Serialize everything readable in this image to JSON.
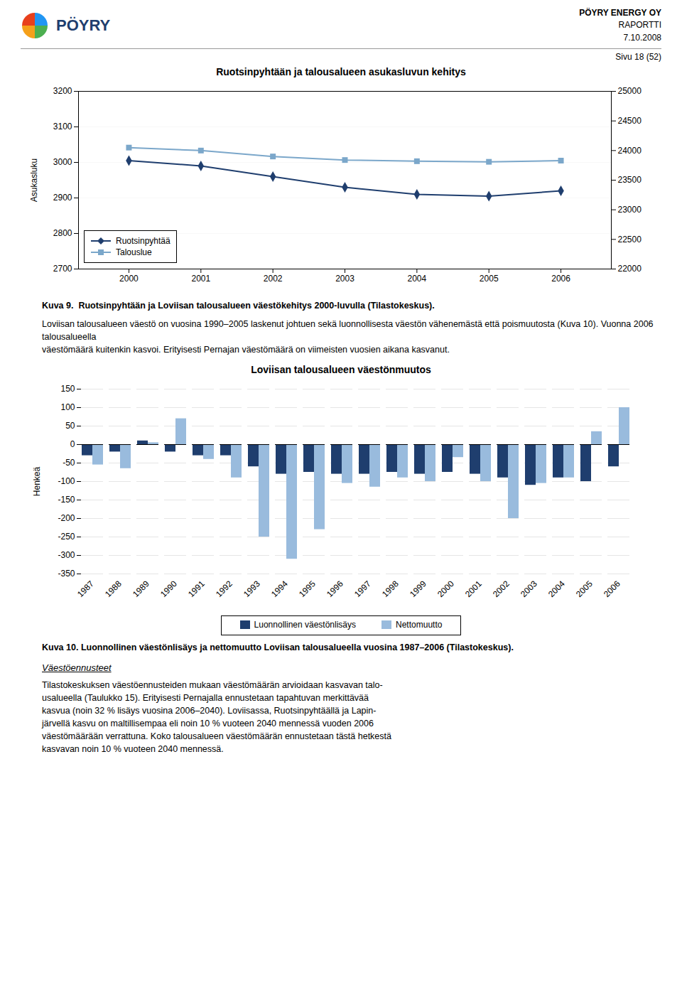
{
  "page": {
    "logo": "PÖYRY",
    "header": [
      "PÖYRY ENERGY OY",
      "RAPORTTI",
      "7.10.2008"
    ],
    "page_number": "Sivu 18 (52)",
    "caption1": "Kuva 9.  Ruotsinpyhtään ja Loviisan talousalueen väestökehitys 2000-luvulla (Tilastokeskus).",
    "body1": [
      "Loviisan talousalueen väestö on vuosina 1990–2005 laskenut johtuen sekä luonnollisesta väestön vähenemästä että poismuutosta (Kuva 10). Vuonna 2006 talousalueella",
      "väestömäärä kuitenkin kasvoi. Erityisesti Pernajan väestömäärä on viimeisten vuosien aikana kasvanut."
    ],
    "caption2": "Kuva 10. Luonnollinen väestönlisäys ja nettomuutto Loviisan talousalueella vuosina 1987–2006 (Tilastokeskus).",
    "section_title": "Väestöennusteet",
    "body2": [
      "Tilastokeskuksen väestöennusteiden mukaan väestömäärän arvioidaan kasvavan talo-",
      "usalueella (Taulukko 15). Erityisesti Pernajalla ennustetaan tapahtuvan merkittävää",
      "kasvua (noin 32 % lisäys vuosina 2006–2040). Loviisassa, Ruotsinpyhtäällä ja Lapin-",
      "järvellä kasvu on maltillisempaa eli noin 10 % vuoteen 2040 mennessä vuoden 2006",
      "väestömäärään verrattuna. Koko talousalueen väestömäärän ennustetaan tästä hetkestä",
      "kasvavan noin 10 % vuoteen 2040 mennessä."
    ]
  },
  "chart_data": [
    {
      "type": "line",
      "title": "Ruotsinpyhtään ja talousalueen asukasluvun kehitys",
      "x": [
        2000,
        2001,
        2002,
        2003,
        2004,
        2005,
        2006
      ],
      "xlim": [
        1999.3,
        2006.7
      ],
      "xticks": [
        2000,
        2001,
        2002,
        2003,
        2004,
        2005,
        2006
      ],
      "ylabel": "Asukasluku",
      "ylim": [
        2700,
        3200
      ],
      "yticks": [
        2700,
        2800,
        2900,
        3000,
        3100,
        3200
      ],
      "y2lim": [
        22000,
        25000
      ],
      "y2ticks": [
        22000,
        22500,
        23000,
        23500,
        24000,
        24500,
        25000
      ],
      "grid": true,
      "legend": "lower left",
      "series": [
        {
          "name": "Ruotsinpyhtää",
          "color": "#1F3E6E",
          "marker": "diamond",
          "values": [
            3005,
            2990,
            2960,
            2930,
            2910,
            2905,
            2920
          ]
        },
        {
          "name": "Talouslue",
          "color": "#7BA7CA",
          "marker": "square",
          "axis": "y2",
          "values": [
            24050,
            24000,
            23900,
            23840,
            23820,
            23810,
            23830
          ]
        }
      ]
    },
    {
      "type": "bar",
      "title": "Loviisan talousalueen väestönmuutos",
      "categories": [
        "1987",
        "1988",
        "1989",
        "1990",
        "1991",
        "1992",
        "1993",
        "1994",
        "1995",
        "1996",
        "1997",
        "1998",
        "1999",
        "2000",
        "2001",
        "2002",
        "2003",
        "2004",
        "2005",
        "2006"
      ],
      "ylabel": "Henkeä",
      "ylim": [
        -350,
        150
      ],
      "yticks": [
        -350,
        -300,
        -250,
        -200,
        -150,
        -100,
        -50,
        0,
        50,
        100,
        150
      ],
      "grid": true,
      "legend": "bottom",
      "series": [
        {
          "name": "Luonnollinen väestönlisäys",
          "color": "#1F3E6E",
          "values": [
            -30,
            -20,
            10,
            -20,
            -30,
            -30,
            -60,
            -80,
            -75,
            -80,
            -80,
            -75,
            -80,
            -75,
            -80,
            -90,
            -110,
            -90,
            -100,
            -60
          ]
        },
        {
          "name": "Nettomuutto",
          "color": "#99BBDD",
          "values": [
            -55,
            -65,
            5,
            70,
            -40,
            -90,
            -250,
            -310,
            -230,
            -105,
            -115,
            -90,
            -100,
            -35,
            -100,
            -200,
            -105,
            -90,
            35,
            100
          ]
        }
      ]
    }
  ]
}
